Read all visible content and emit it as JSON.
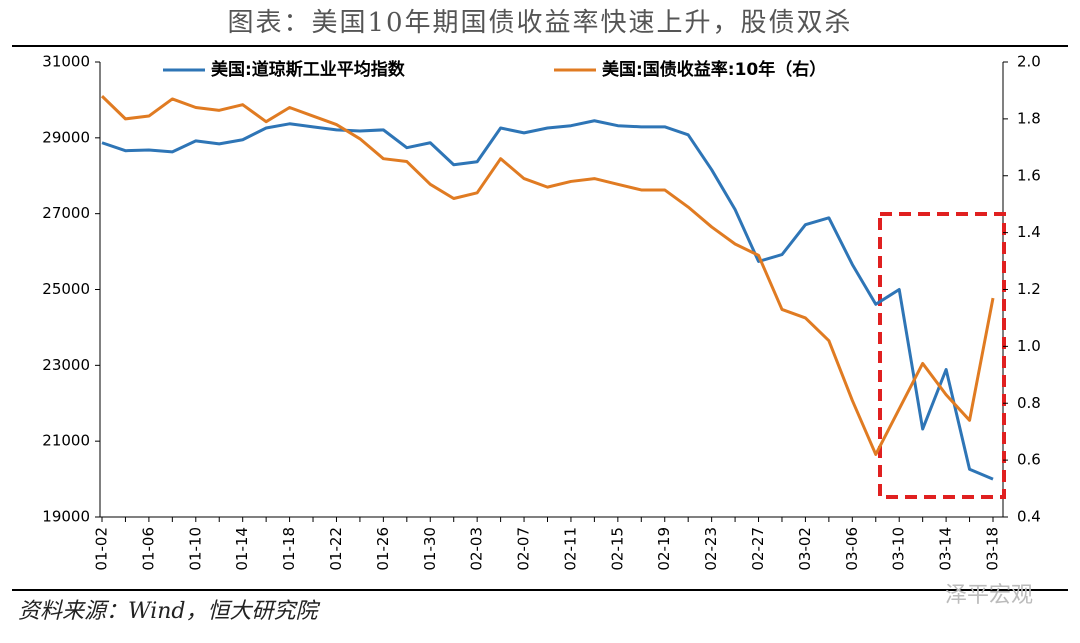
{
  "chart_data": {
    "type": "line",
    "title": "图表：美国10年期国债收益率快速上升，股债双杀",
    "source": "资料来源：Wind，恒大研究院",
    "watermark": "泽平宏观",
    "categories": [
      "01-02",
      null,
      "01-06",
      null,
      "01-10",
      null,
      "01-14",
      null,
      "01-18",
      null,
      "01-22",
      null,
      "01-26",
      null,
      "01-30",
      null,
      "02-03",
      null,
      "02-07",
      null,
      "02-11",
      null,
      "02-15",
      null,
      "02-19",
      null,
      "02-23",
      null,
      "02-27",
      null,
      "03-02",
      null,
      "03-06",
      null,
      "03-10",
      null,
      "03-14",
      null,
      "03-18"
    ],
    "series": [
      {
        "name": "美国:道琼斯工业平均指数",
        "color": "#2e75b6",
        "axis": "y",
        "values": [
          28870,
          28660,
          28680,
          28630,
          28920,
          28840,
          28950,
          29260,
          29370,
          29290,
          29210,
          29180,
          29210,
          28740,
          28870,
          28290,
          28370,
          29260,
          29130,
          29260,
          29320,
          29450,
          29320,
          29290,
          29290,
          29080,
          28160,
          27110,
          25740,
          25920,
          26710,
          26890,
          25660,
          24610,
          25000,
          21320,
          22890,
          20260,
          20000
        ]
      },
      {
        "name": "美国:国债收益率:10年（右）",
        "color": "#e07b22",
        "axis": "y2",
        "values": [
          1.88,
          1.8,
          1.81,
          1.87,
          1.84,
          1.83,
          1.85,
          1.79,
          1.84,
          1.81,
          1.78,
          1.73,
          1.66,
          1.65,
          1.57,
          1.52,
          1.54,
          1.66,
          1.59,
          1.56,
          1.58,
          1.59,
          1.57,
          1.55,
          1.55,
          1.49,
          1.42,
          1.36,
          1.32,
          1.13,
          1.1,
          1.02,
          0.81,
          0.62,
          0.78,
          0.94,
          0.83,
          0.74,
          1.17
        ]
      }
    ],
    "ylim": [
      19000,
      31000
    ],
    "yticks": [
      19000,
      21000,
      23000,
      25000,
      27000,
      29000,
      31000
    ],
    "y2lim": [
      0.4,
      2.0
    ],
    "y2ticks": [
      0.4,
      0.6,
      0.8,
      {
        "value": 1,
        "label": "1.0"
      },
      1.2,
      1.4,
      1.6,
      1.8,
      {
        "value": 2,
        "label": "2.0"
      }
    ],
    "grid": false,
    "legend": "top"
  }
}
